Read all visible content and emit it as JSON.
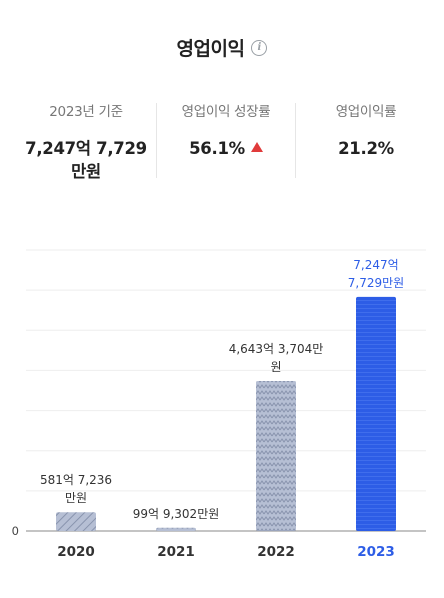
{
  "header": {
    "title": "영업이익",
    "info_icon": "info-icon"
  },
  "stats": [
    {
      "label": "2023년 기준",
      "value": "7,247억 7,729 만원"
    },
    {
      "label": "영업이익 성장률",
      "value": "56.1%",
      "trend": "up",
      "trend_color": "#e03b3b"
    },
    {
      "label": "영업이익률",
      "value": "21.2%"
    }
  ],
  "chart_data": {
    "type": "bar",
    "categories": [
      "2020",
      "2021",
      "2022",
      "2023"
    ],
    "values": [
      581.7236,
      99.9302,
      4643.3704,
      7247.7729
    ],
    "value_unit": "억원",
    "data_labels": [
      "581억 7,236만원",
      "99억 9,302만원",
      "4,643억 3,704만원",
      "7,247억 7,729만원"
    ],
    "y_tick_labels": [
      "0"
    ],
    "ylim": [
      0,
      8700
    ],
    "grid": true,
    "highlight_category": "2023",
    "colors": {
      "highlight": "#2d5de6",
      "normal_fill": "#b6bfd4",
      "normal_pattern": "#8893ad",
      "highlight_label": "#2d5de6",
      "normal_label": "#333333"
    }
  }
}
